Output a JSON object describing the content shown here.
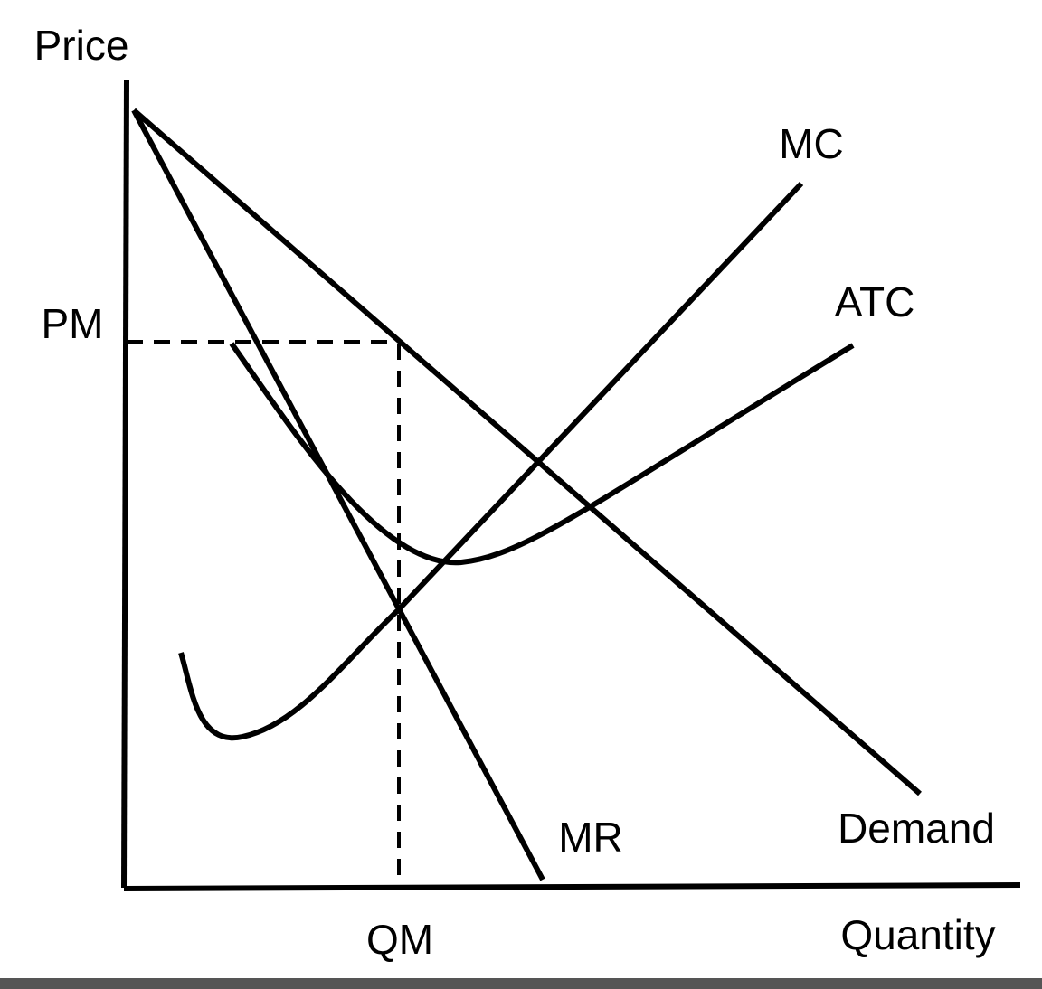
{
  "axes": {
    "y_label": "Price",
    "x_label": "Quantity"
  },
  "curves": [
    {
      "label": "MC"
    },
    {
      "label": "ATC"
    },
    {
      "label": "MR"
    },
    {
      "label": "Demand"
    }
  ],
  "markers": {
    "price": "PM",
    "quantity": "QM"
  }
}
